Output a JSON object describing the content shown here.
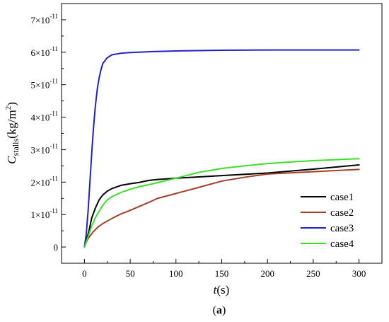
{
  "chart_data": {
    "type": "line",
    "xlim": [
      -25,
      325
    ],
    "ylim": [
      -5e-12,
      7.5e-11
    ],
    "x_ticks": [
      {
        "value": 0,
        "label": "0"
      },
      {
        "value": 50,
        "label": "50"
      },
      {
        "value": 100,
        "label": "100"
      },
      {
        "value": 150,
        "label": "150"
      },
      {
        "value": 200,
        "label": "200"
      },
      {
        "value": 250,
        "label": "250"
      },
      {
        "value": 300,
        "label": "300"
      }
    ],
    "y_ticks": [
      {
        "value": 0,
        "mant": "0",
        "exp": ""
      },
      {
        "value": 1e-11,
        "mant": "1×10",
        "exp": "-11"
      },
      {
        "value": 2e-11,
        "mant": "2×10",
        "exp": "-11"
      },
      {
        "value": 3e-11,
        "mant": "3×10",
        "exp": "-11"
      },
      {
        "value": 4e-11,
        "mant": "4×10",
        "exp": "-11"
      },
      {
        "value": 5e-11,
        "mant": "5×10",
        "exp": "-11"
      },
      {
        "value": 6e-11,
        "mant": "6×10",
        "exp": "-11"
      },
      {
        "value": 7e-11,
        "mant": "7×10",
        "exp": "-11"
      }
    ],
    "xlabel": {
      "italic": "t",
      "rest": "(s)"
    },
    "ylabel": {
      "italic": "C",
      "sub": "stalls",
      "rest": "(kg/m",
      "sup": "2",
      "end": ")"
    },
    "caption": {
      "open": "(",
      "bold": "a",
      "close": ")"
    },
    "grid": false,
    "legend_position": "lower-right",
    "series": [
      {
        "name": "case1",
        "color": "#000000",
        "x": [
          0,
          2,
          5,
          8,
          12,
          16,
          20,
          25,
          30,
          35,
          40,
          50,
          60,
          70,
          80,
          90,
          100,
          120,
          150,
          200,
          250,
          300
        ],
        "y": [
          0,
          2e-12,
          5e-12,
          9e-12,
          1.2e-11,
          1.45e-11,
          1.6e-11,
          1.72e-11,
          1.8e-11,
          1.85e-11,
          1.9e-11,
          1.95e-11,
          1.99e-11,
          2.05e-11,
          2.08e-11,
          2.1e-11,
          2.12e-11,
          2.15e-11,
          2.2e-11,
          2.28e-11,
          2.4e-11,
          2.53e-11
        ]
      },
      {
        "name": "case2",
        "color": "#a0402a",
        "x": [
          0,
          2,
          5,
          10,
          15,
          20,
          30,
          40,
          50,
          60,
          70,
          80,
          100,
          120,
          150,
          175,
          200,
          250,
          300
        ],
        "y": [
          0,
          1.5e-12,
          3e-12,
          4.8e-12,
          6.2e-12,
          7.2e-12,
          8.8e-12,
          1.02e-11,
          1.13e-11,
          1.25e-11,
          1.37e-11,
          1.5e-11,
          1.65e-11,
          1.8e-11,
          2.03e-11,
          2.15e-11,
          2.25e-11,
          2.32e-11,
          2.39e-11
        ]
      },
      {
        "name": "case3",
        "color": "#2121c8",
        "x": [
          0,
          2,
          4,
          6,
          8,
          10,
          12,
          14,
          16,
          18,
          20,
          25,
          30,
          40,
          50,
          75,
          100,
          150,
          200,
          250,
          300
        ],
        "y": [
          0,
          4e-12,
          1.1e-11,
          2e-11,
          2.9e-11,
          3.7e-11,
          4.35e-11,
          4.85e-11,
          5.2e-11,
          5.45e-11,
          5.65e-11,
          5.83e-11,
          5.92e-11,
          5.97e-11,
          5.99e-11,
          6.02e-11,
          6.04e-11,
          6.06e-11,
          6.07e-11,
          6.07e-11,
          6.07e-11
        ]
      },
      {
        "name": "case4",
        "color": "#3ddd2b",
        "x": [
          0,
          2,
          5,
          8,
          12,
          16,
          20,
          25,
          30,
          40,
          50,
          60,
          75,
          100,
          125,
          150,
          175,
          200,
          225,
          250,
          275,
          300
        ],
        "y": [
          0,
          1.5e-12,
          4e-12,
          6.5e-12,
          9e-12,
          1.1e-11,
          1.28e-11,
          1.45e-11,
          1.55e-11,
          1.68e-11,
          1.78e-11,
          1.86e-11,
          1.95e-11,
          2.12e-11,
          2.3e-11,
          2.42e-11,
          2.5e-11,
          2.57e-11,
          2.62e-11,
          2.66e-11,
          2.69e-11,
          2.72e-11
        ]
      }
    ]
  }
}
